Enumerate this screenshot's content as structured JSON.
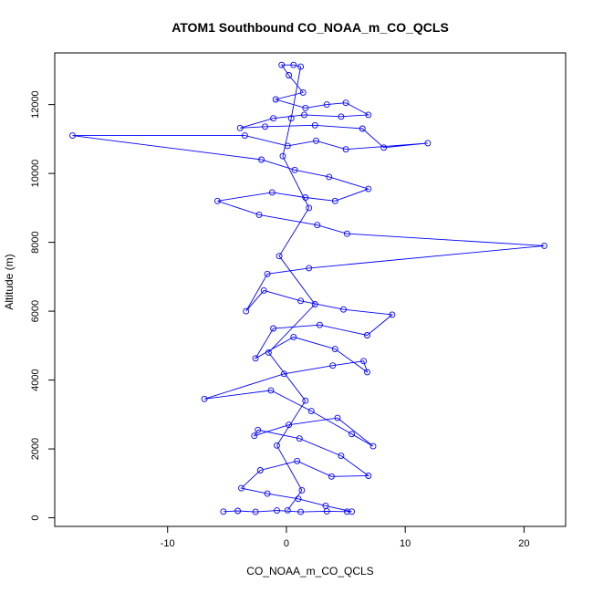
{
  "chart_data": {
    "type": "line",
    "title": "ATOM1 Southbound CO_NOAA_m_CO_QCLS",
    "xlabel": "CO_NOAA_m_CO_QCLS",
    "ylabel": "Altitude (m)",
    "xlim": [
      -19.5,
      23.5
    ],
    "ylim": [
      -250,
      13500
    ],
    "xticks": [
      -10,
      0,
      10,
      20
    ],
    "yticks": [
      0,
      2000,
      4000,
      6000,
      8000,
      10000,
      12000
    ],
    "grid": false,
    "legend": "none",
    "colors": {
      "series": "#0000ff",
      "frame": "#000000"
    },
    "series": [
      {
        "points": [
          [
            -5.3,
            180
          ],
          [
            -4.1,
            200
          ],
          [
            -2.6,
            170
          ],
          [
            -0.8,
            210
          ],
          [
            1.2,
            170
          ],
          [
            3.4,
            190
          ],
          [
            5.1,
            180
          ],
          [
            5.5,
            180
          ],
          [
            3.3,
            350
          ],
          [
            1.0,
            550
          ],
          [
            -1.6,
            700
          ],
          [
            -3.8,
            860
          ],
          [
            -2.2,
            1380
          ],
          [
            0.9,
            1650
          ],
          [
            3.8,
            1200
          ],
          [
            6.9,
            1220
          ],
          [
            4.6,
            1800
          ],
          [
            1.1,
            2300
          ],
          [
            -2.4,
            2550
          ],
          [
            -2.7,
            2380
          ],
          [
            0.2,
            2700
          ],
          [
            4.3,
            2900
          ],
          [
            7.3,
            2080
          ],
          [
            5.5,
            2430
          ],
          [
            2.1,
            3100
          ],
          [
            -1.3,
            3700
          ],
          [
            -6.9,
            3450
          ],
          [
            -0.2,
            4180
          ],
          [
            3.9,
            4420
          ],
          [
            6.5,
            4550
          ],
          [
            6.8,
            4230
          ],
          [
            4.1,
            4900
          ],
          [
            0.6,
            5250
          ],
          [
            -2.6,
            4630
          ],
          [
            -1.1,
            5500
          ],
          [
            2.8,
            5600
          ],
          [
            6.8,
            5300
          ],
          [
            8.9,
            5900
          ],
          [
            4.8,
            6050
          ],
          [
            1.2,
            6300
          ],
          [
            -1.9,
            6600
          ],
          [
            -3.4,
            6000
          ],
          [
            -1.6,
            7080
          ],
          [
            1.9,
            7250
          ],
          [
            21.7,
            7900
          ],
          [
            5.1,
            8250
          ],
          [
            2.6,
            8500
          ],
          [
            -2.3,
            8800
          ],
          [
            -5.8,
            9200
          ],
          [
            -1.2,
            9450
          ],
          [
            1.6,
            9300
          ],
          [
            4.1,
            9200
          ],
          [
            6.9,
            9550
          ],
          [
            3.6,
            9900
          ],
          [
            0.7,
            10100
          ],
          [
            -2.1,
            10400
          ],
          [
            -18.0,
            11100
          ],
          [
            -3.5,
            11100
          ],
          [
            0.1,
            10800
          ],
          [
            2.5,
            10950
          ],
          [
            5.0,
            10700
          ],
          [
            11.9,
            10880
          ],
          [
            8.2,
            10750
          ],
          [
            6.4,
            11300
          ],
          [
            2.4,
            11400
          ],
          [
            -1.8,
            11360
          ],
          [
            -3.9,
            11320
          ],
          [
            -1.1,
            11600
          ],
          [
            1.5,
            11700
          ],
          [
            4.6,
            11650
          ],
          [
            6.9,
            11700
          ],
          [
            5.0,
            12050
          ],
          [
            3.4,
            12000
          ],
          [
            1.6,
            11900
          ],
          [
            -0.9,
            12150
          ],
          [
            1.4,
            12350
          ],
          [
            0.2,
            12850
          ],
          [
            -0.4,
            13150
          ],
          [
            0.6,
            13150
          ],
          [
            1.2,
            13100
          ],
          [
            0.4,
            11600
          ],
          [
            -0.3,
            10500
          ],
          [
            1.9,
            9000
          ],
          [
            -0.6,
            7600
          ],
          [
            2.4,
            6200
          ],
          [
            -1.5,
            4800
          ],
          [
            1.6,
            3400
          ],
          [
            -0.8,
            2100
          ],
          [
            1.3,
            800
          ],
          [
            0.1,
            220
          ]
        ]
      }
    ]
  }
}
